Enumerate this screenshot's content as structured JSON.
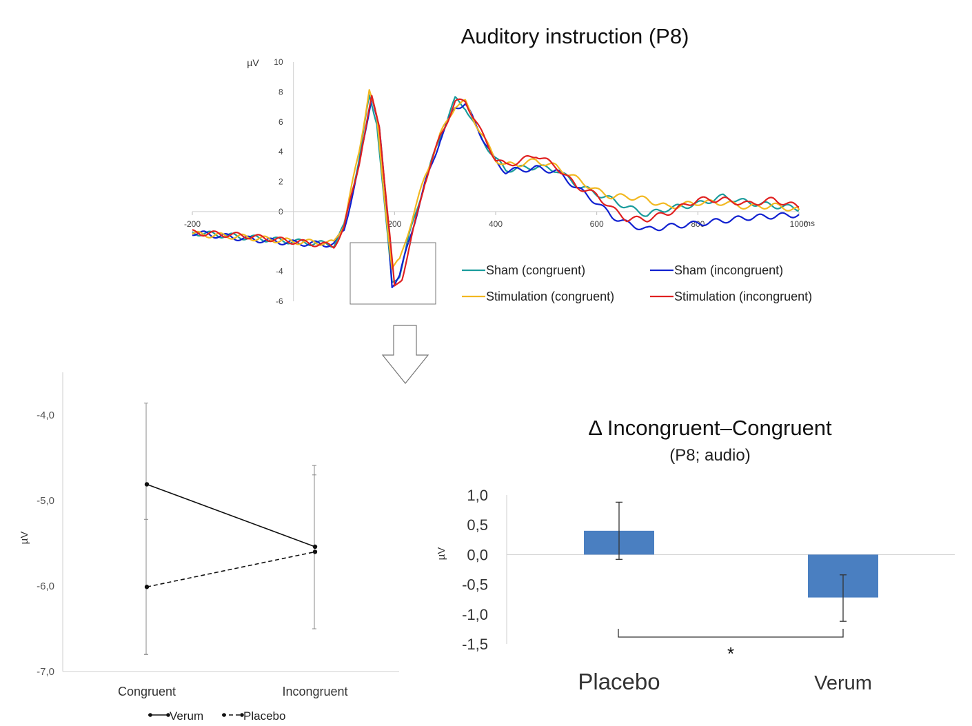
{
  "chart_data": [
    {
      "type": "line",
      "title": "Auditory instruction (P8)",
      "ylabel": "µV",
      "xlabel": "ms",
      "xlim": [
        -200,
        1000
      ],
      "ylim": [
        -6,
        10
      ],
      "x_ticks": [
        "-200",
        "200",
        "400",
        "600",
        "800",
        "1000"
      ],
      "y_ticks": [
        "10",
        "8",
        "6",
        "4",
        "2",
        "0",
        "-4",
        "-6"
      ],
      "legend_position": "bottom-right",
      "grid": false,
      "series": [
        {
          "name": "Sham (congruent)",
          "color": "#1a9c9c",
          "points": [
            [
              -200,
              -1.4
            ],
            [
              -100,
              -1.7
            ],
            [
              0,
              -2.0
            ],
            [
              80,
              -2.2
            ],
            [
              100,
              -1.0
            ],
            [
              130,
              3.5
            ],
            [
              150,
              7.7
            ],
            [
              165,
              6.0
            ],
            [
              180,
              0.5
            ],
            [
              195,
              -4.8
            ],
            [
              210,
              -4.2
            ],
            [
              230,
              -1.5
            ],
            [
              260,
              2.0
            ],
            [
              290,
              5.0
            ],
            [
              320,
              7.5
            ],
            [
              340,
              7.0
            ],
            [
              370,
              5.0
            ],
            [
              400,
              3.5
            ],
            [
              420,
              2.8
            ],
            [
              450,
              2.9
            ],
            [
              480,
              3.0
            ],
            [
              520,
              2.8
            ],
            [
              560,
              1.8
            ],
            [
              600,
              1.2
            ],
            [
              630,
              0.8
            ],
            [
              660,
              0.3
            ],
            [
              700,
              -0.2
            ],
            [
              740,
              0.2
            ],
            [
              800,
              0.5
            ],
            [
              850,
              1.0
            ],
            [
              900,
              0.6
            ],
            [
              950,
              0.4
            ],
            [
              1000,
              0.2
            ]
          ]
        },
        {
          "name": "Sham (incongruent)",
          "color": "#1020d0",
          "points": [
            [
              -200,
              -1.4
            ],
            [
              -100,
              -1.8
            ],
            [
              0,
              -2.1
            ],
            [
              80,
              -2.2
            ],
            [
              100,
              -1.2
            ],
            [
              130,
              3.0
            ],
            [
              155,
              7.8
            ],
            [
              170,
              5.5
            ],
            [
              185,
              0.0
            ],
            [
              195,
              -4.9
            ],
            [
              210,
              -4.3
            ],
            [
              230,
              -1.8
            ],
            [
              260,
              1.8
            ],
            [
              290,
              4.8
            ],
            [
              320,
              7.0
            ],
            [
              340,
              7.2
            ],
            [
              370,
              5.2
            ],
            [
              400,
              3.3
            ],
            [
              420,
              2.7
            ],
            [
              450,
              2.8
            ],
            [
              480,
              2.9
            ],
            [
              520,
              2.7
            ],
            [
              560,
              1.6
            ],
            [
              600,
              0.6
            ],
            [
              630,
              -0.3
            ],
            [
              660,
              -0.8
            ],
            [
              700,
              -1.2
            ],
            [
              740,
              -1.0
            ],
            [
              800,
              -0.8
            ],
            [
              850,
              -0.6
            ],
            [
              900,
              -0.4
            ],
            [
              950,
              -0.3
            ],
            [
              1000,
              -0.2
            ]
          ]
        },
        {
          "name": "Stimulation (congruent)",
          "color": "#f2b820",
          "points": [
            [
              -200,
              -1.5
            ],
            [
              -100,
              -1.7
            ],
            [
              0,
              -2.0
            ],
            [
              80,
              -2.1
            ],
            [
              100,
              -0.8
            ],
            [
              130,
              4.0
            ],
            [
              150,
              8.2
            ],
            [
              165,
              6.2
            ],
            [
              180,
              1.0
            ],
            [
              195,
              -3.8
            ],
            [
              210,
              -3.3
            ],
            [
              230,
              -1.0
            ],
            [
              260,
              2.3
            ],
            [
              290,
              5.1
            ],
            [
              320,
              7.1
            ],
            [
              340,
              7.3
            ],
            [
              370,
              5.3
            ],
            [
              400,
              3.5
            ],
            [
              420,
              3.1
            ],
            [
              450,
              3.2
            ],
            [
              480,
              3.4
            ],
            [
              520,
              3.0
            ],
            [
              560,
              2.2
            ],
            [
              600,
              1.4
            ],
            [
              630,
              1.0
            ],
            [
              660,
              1.0
            ],
            [
              700,
              0.8
            ],
            [
              740,
              0.3
            ],
            [
              800,
              0.6
            ],
            [
              850,
              0.6
            ],
            [
              900,
              0.3
            ],
            [
              950,
              0.4
            ],
            [
              1000,
              0.1
            ]
          ]
        },
        {
          "name": "Stimulation (incongruent)",
          "color": "#e02020",
          "points": [
            [
              -200,
              -1.4
            ],
            [
              -100,
              -1.6
            ],
            [
              0,
              -2.0
            ],
            [
              80,
              -2.3
            ],
            [
              100,
              -1.1
            ],
            [
              130,
              3.3
            ],
            [
              155,
              7.6
            ],
            [
              170,
              5.8
            ],
            [
              185,
              0.3
            ],
            [
              200,
              -5.1
            ],
            [
              215,
              -4.4
            ],
            [
              235,
              -1.6
            ],
            [
              260,
              2.0
            ],
            [
              290,
              5.0
            ],
            [
              320,
              7.3
            ],
            [
              340,
              7.4
            ],
            [
              370,
              5.4
            ],
            [
              400,
              3.5
            ],
            [
              420,
              3.1
            ],
            [
              450,
              3.4
            ],
            [
              480,
              3.8
            ],
            [
              520,
              3.0
            ],
            [
              560,
              1.7
            ],
            [
              600,
              1.1
            ],
            [
              630,
              0.2
            ],
            [
              660,
              -0.5
            ],
            [
              700,
              -0.5
            ],
            [
              740,
              -0.1
            ],
            [
              800,
              0.8
            ],
            [
              850,
              0.8
            ],
            [
              900,
              0.5
            ],
            [
              950,
              0.8
            ],
            [
              1000,
              0.3
            ]
          ]
        }
      ]
    },
    {
      "type": "line",
      "ylabel": "µV",
      "categories": [
        "Congruent",
        "Incongruent"
      ],
      "ylim": [
        -7.0,
        -3.5
      ],
      "y_ticks": [
        "-4,0",
        "-5,0",
        "-6,0",
        "-7,0"
      ],
      "legend_position": "bottom",
      "series": [
        {
          "name": "Verum",
          "style": "solid",
          "values": [
            -4.81,
            -5.54
          ],
          "err_low": [
            -6.8,
            -6.5
          ],
          "err_high": [
            -3.86,
            -4.59
          ]
        },
        {
          "name": "Placebo",
          "style": "dashed",
          "values": [
            -6.01,
            -5.6
          ],
          "err_low": [
            -6.8,
            -6.5
          ],
          "err_high": [
            -5.22,
            -4.7
          ]
        }
      ]
    },
    {
      "type": "bar",
      "title": "Δ Incongruent–Congruent",
      "subtitle": "(P8; audio)",
      "ylabel": "µV",
      "categories": [
        "Placebo",
        "Verum"
      ],
      "values": [
        0.4,
        -0.72
      ],
      "err_low": [
        -0.08,
        -1.12
      ],
      "err_high": [
        0.88,
        -0.34
      ],
      "ylim": [
        -1.5,
        1.0
      ],
      "y_ticks": [
        "1,0",
        "0,5",
        "0,0",
        "-0,5",
        "-1,0",
        "-1,5"
      ],
      "bar_color": "#4a7fc1",
      "significance": "*"
    }
  ]
}
